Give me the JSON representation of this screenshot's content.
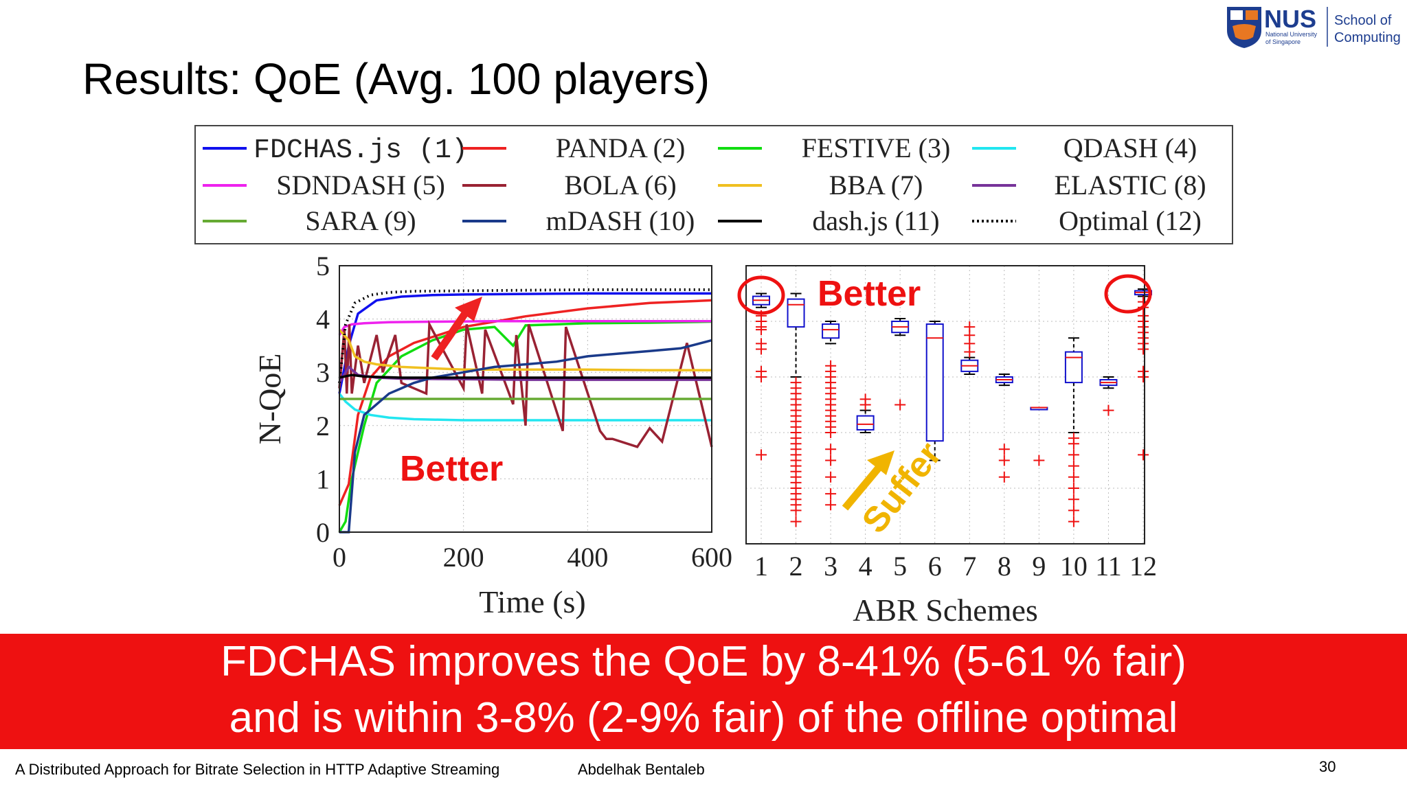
{
  "slide": {
    "title": "Results: QoE (Avg. 100 players)",
    "logo": {
      "abbrev": "NUS",
      "sub1": "National University",
      "sub2": "of Singapore",
      "school1": "School of",
      "school2": "Computing",
      "color": "#1d3d8f"
    },
    "banner_line1": "FDCHAS improves the QoE by 8-41% (5-61 % fair)",
    "banner_line2": "and is within 3-8% (2-9% fair) of the offline optimal",
    "footer_title": "A Distributed Approach for Bitrate Selection in HTTP Adaptive Streaming",
    "footer_author": "Abdelhak Bentaleb",
    "page_number": "30",
    "banner_color": "#ee1111"
  },
  "annotations": {
    "left_better": "Better",
    "right_better": "Better",
    "suffer": "Suffer"
  },
  "chart_data": [
    {
      "type": "line",
      "ylabel": "N-QoE",
      "xlabel": "Time (s)",
      "xlim": [
        0,
        600
      ],
      "ylim": [
        0,
        5
      ],
      "xticks": [
        0,
        200,
        400,
        600
      ],
      "yticks": [
        0,
        1,
        2,
        3,
        4,
        5
      ],
      "grid": true,
      "legend_position": "top",
      "series": [
        {
          "name": "FDCHAS.js (1)",
          "color": "#1010ee",
          "mono": true,
          "style": "solid",
          "x": [
            0,
            15,
            30,
            60,
            100,
            150,
            200,
            300,
            400,
            500,
            600
          ],
          "y": [
            2.6,
            3.5,
            4.1,
            4.35,
            4.42,
            4.45,
            4.46,
            4.47,
            4.48,
            4.48,
            4.48
          ]
        },
        {
          "name": "PANDA (2)",
          "color": "#ee2222",
          "style": "solid",
          "x": [
            0,
            15,
            30,
            50,
            80,
            120,
            160,
            200,
            300,
            400,
            500,
            600
          ],
          "y": [
            0.5,
            0.9,
            2.2,
            2.9,
            3.3,
            3.55,
            3.7,
            3.85,
            4.05,
            4.2,
            4.3,
            4.35
          ]
        },
        {
          "name": "FESTIVE (3)",
          "color": "#11dd11",
          "style": "solid",
          "x": [
            0,
            10,
            20,
            40,
            60,
            100,
            150,
            200,
            250,
            280,
            300,
            350,
            400,
            500,
            600
          ],
          "y": [
            0.0,
            0.2,
            1.0,
            2.0,
            2.8,
            3.3,
            3.6,
            3.8,
            3.85,
            3.5,
            3.88,
            3.9,
            3.92,
            3.93,
            3.95
          ]
        },
        {
          "name": "QDASH (4)",
          "color": "#22e6f0",
          "style": "solid",
          "x": [
            0,
            10,
            25,
            50,
            80,
            120,
            200,
            300,
            400,
            500,
            600
          ],
          "y": [
            2.6,
            2.45,
            2.3,
            2.2,
            2.15,
            2.12,
            2.1,
            2.1,
            2.1,
            2.1,
            2.1
          ]
        },
        {
          "name": "SDNDASH (5)",
          "color": "#ee22ee",
          "style": "solid",
          "x": [
            0,
            8,
            20,
            40,
            80,
            150,
            250,
            400,
            600
          ],
          "y": [
            3.7,
            3.85,
            3.9,
            3.92,
            3.94,
            3.95,
            3.96,
            3.96,
            3.96
          ]
        },
        {
          "name": "BOLA (6)",
          "color": "#992233",
          "style": "solid",
          "x": [
            0,
            8,
            12,
            16,
            20,
            30,
            40,
            60,
            70,
            90,
            100,
            140,
            145,
            200,
            205,
            230,
            235,
            280,
            285,
            300,
            305,
            360,
            365,
            420,
            430,
            440,
            480,
            500,
            520,
            560,
            600
          ],
          "y": [
            2.7,
            3.8,
            2.6,
            3.9,
            2.6,
            3.5,
            2.8,
            3.7,
            3.0,
            3.7,
            2.8,
            2.6,
            3.9,
            2.7,
            3.9,
            2.6,
            3.8,
            2.4,
            3.7,
            2.0,
            3.9,
            1.9,
            3.85,
            1.9,
            1.75,
            1.75,
            1.6,
            1.95,
            1.7,
            3.55,
            1.6
          ]
        },
        {
          "name": "BBA (7)",
          "color": "#f0c020",
          "style": "solid",
          "x": [
            0,
            15,
            25,
            40,
            60,
            100,
            200,
            300,
            400,
            500,
            600
          ],
          "y": [
            3.8,
            3.6,
            3.3,
            3.2,
            3.15,
            3.1,
            3.05,
            3.05,
            3.05,
            3.04,
            3.04
          ]
        },
        {
          "name": "ELASTIC (8)",
          "color": "#773399",
          "style": "solid",
          "x": [
            0,
            15,
            30,
            60,
            100,
            200,
            300,
            400,
            500,
            600
          ],
          "y": [
            2.8,
            3.1,
            2.95,
            2.9,
            2.88,
            2.87,
            2.86,
            2.86,
            2.86,
            2.86
          ]
        },
        {
          "name": "SARA (9)",
          "color": "#66aa33",
          "style": "solid",
          "x": [
            0,
            20,
            40,
            100,
            200,
            400,
            600
          ],
          "y": [
            2.5,
            2.5,
            2.5,
            2.5,
            2.5,
            2.5,
            2.5
          ]
        },
        {
          "name": "mDASH (10)",
          "color": "#1a3a8a",
          "style": "solid",
          "x": [
            0,
            15,
            25,
            40,
            60,
            80,
            100,
            120,
            150,
            200,
            250,
            300,
            350,
            400,
            450,
            500,
            550,
            600
          ],
          "y": [
            0.0,
            0.0,
            1.5,
            2.2,
            2.4,
            2.6,
            2.7,
            2.8,
            2.9,
            3.0,
            3.1,
            3.15,
            3.2,
            3.3,
            3.35,
            3.4,
            3.45,
            3.6
          ]
        },
        {
          "name": "dash.js (11)",
          "color": "#000000",
          "style": "solid",
          "x": [
            0,
            20,
            40,
            100,
            200,
            300,
            400,
            500,
            600
          ],
          "y": [
            2.9,
            2.95,
            2.92,
            2.9,
            2.9,
            2.9,
            2.9,
            2.9,
            2.9
          ]
        },
        {
          "name": "Optimal (12)",
          "color": "#000000",
          "style": "dotted",
          "x": [
            0,
            10,
            25,
            50,
            80,
            120,
            200,
            300,
            400,
            500,
            600
          ],
          "y": [
            2.8,
            3.9,
            4.3,
            4.45,
            4.5,
            4.52,
            4.53,
            4.54,
            4.55,
            4.55,
            4.55
          ]
        }
      ]
    },
    {
      "type": "box",
      "xlabel": "ABR Schemes",
      "categories": [
        "1",
        "2",
        "3",
        "4",
        "5",
        "6",
        "7",
        "8",
        "9",
        "10",
        "11",
        "12"
      ],
      "ylim": [
        0,
        5
      ],
      "grid": true,
      "boxes": [
        {
          "q1": 4.3,
          "median": 4.38,
          "q3": 4.45,
          "whisker_low": 4.25,
          "whisker_high": 4.5,
          "outliers": [
            4.1,
            4.0,
            3.9,
            3.85,
            3.6,
            3.5,
            3.1,
            3.0,
            1.6
          ]
        },
        {
          "q1": 3.9,
          "median": 4.3,
          "q3": 4.4,
          "whisker_low": 3.0,
          "whisker_high": 4.5,
          "outliers": [
            2.9,
            2.8,
            2.7,
            2.6,
            2.5,
            2.4,
            2.3,
            2.2,
            2.1,
            2.0,
            1.9,
            1.8,
            1.7,
            1.6,
            1.5,
            1.4,
            1.3,
            1.2,
            1.1,
            1.0,
            0.9,
            0.8,
            0.7,
            0.6,
            0.4
          ]
        },
        {
          "q1": 3.7,
          "median": 3.85,
          "q3": 3.95,
          "whisker_low": 3.6,
          "whisker_high": 4.0,
          "outliers": [
            3.2,
            3.1,
            3.0,
            2.9,
            2.8,
            2.7,
            2.6,
            2.5,
            2.4,
            2.3,
            2.2,
            2.1,
            2.0,
            1.7,
            1.5,
            1.2,
            0.9,
            0.7
          ]
        },
        {
          "q1": 2.05,
          "median": 2.15,
          "q3": 2.3,
          "whisker_low": 2.0,
          "whisker_high": 2.4,
          "outliers": [
            2.6,
            2.5
          ]
        },
        {
          "q1": 3.8,
          "median": 3.9,
          "q3": 4.0,
          "whisker_low": 3.75,
          "whisker_high": 4.05,
          "outliers": [
            2.5
          ]
        },
        {
          "q1": 1.85,
          "median": 3.7,
          "q3": 3.95,
          "whisker_low": 1.5,
          "whisker_high": 4.0,
          "outliers": []
        },
        {
          "q1": 3.1,
          "median": 3.2,
          "q3": 3.3,
          "whisker_low": 3.05,
          "whisker_high": 3.35,
          "outliers": [
            3.9,
            3.75,
            3.6,
            3.45
          ]
        },
        {
          "q1": 2.9,
          "median": 2.95,
          "q3": 3.0,
          "whisker_low": 2.85,
          "whisker_high": 3.05,
          "outliers": [
            1.7,
            1.5,
            1.2
          ]
        },
        {
          "q1": 2.45,
          "median": 2.45,
          "q3": 2.45,
          "whisker_low": 2.45,
          "whisker_high": 2.45,
          "outliers": [
            1.5
          ]
        },
        {
          "q1": 2.9,
          "median": 3.35,
          "q3": 3.45,
          "whisker_low": 2.0,
          "whisker_high": 3.7,
          "outliers": [
            1.9,
            1.8,
            1.6,
            1.4,
            1.2,
            1.0,
            0.8,
            0.6,
            0.4
          ]
        },
        {
          "q1": 2.85,
          "median": 2.9,
          "q3": 2.95,
          "whisker_low": 2.8,
          "whisker_high": 3.0,
          "outliers": [
            2.4
          ]
        },
        {
          "q1": 4.48,
          "median": 4.52,
          "q3": 4.55,
          "whisker_low": 4.45,
          "whisker_high": 4.58,
          "outliers": [
            4.35,
            4.25,
            4.1,
            4.0,
            3.9,
            3.8,
            3.7,
            3.6,
            3.5,
            3.1,
            3.0,
            1.6
          ]
        }
      ]
    }
  ]
}
